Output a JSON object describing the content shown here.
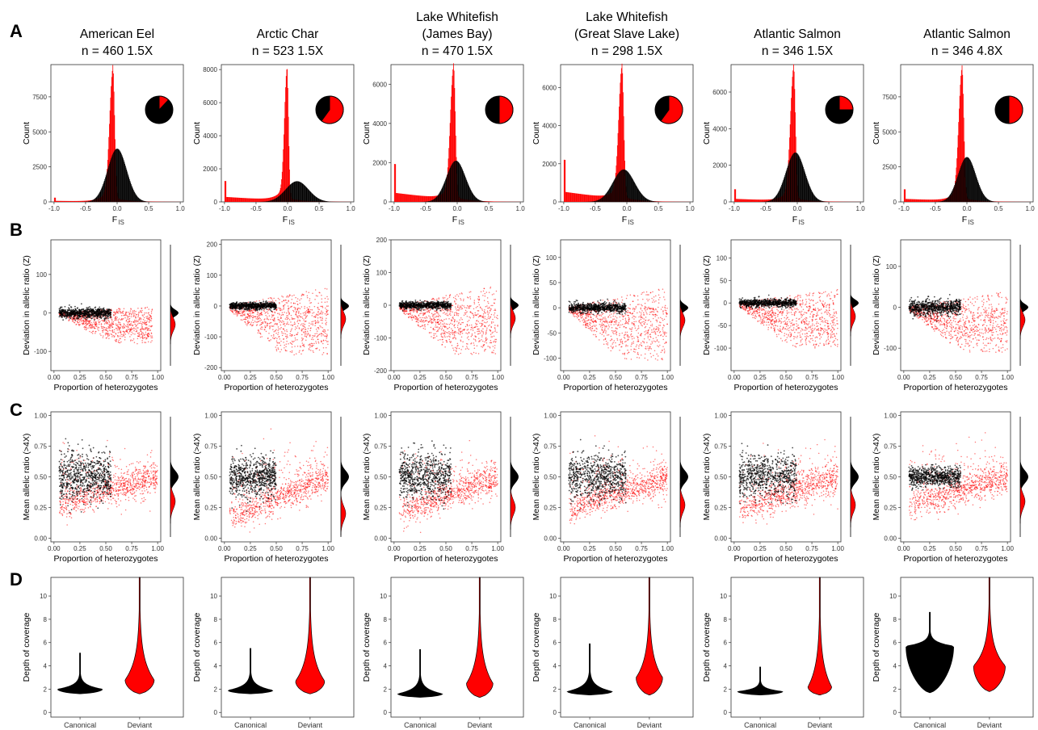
{
  "figure": {
    "row_letters": [
      "A",
      "B",
      "C",
      "D"
    ],
    "colors": {
      "deviant": "#ff0000",
      "canonical": "#000000",
      "frame": "#333333"
    },
    "columns": [
      {
        "title": [
          "American Eel",
          "n = 460    1.5X"
        ]
      },
      {
        "title": [
          "Arctic Char",
          "n = 523    1.5X"
        ]
      },
      {
        "title": [
          "Lake Whitefish",
          "(James Bay)",
          "n = 470    1.5X"
        ]
      },
      {
        "title": [
          "Lake Whitefish",
          "(Great Slave Lake)",
          "n = 298    1.5X"
        ]
      },
      {
        "title": [
          "Atlantic Salmon",
          "n = 346    1.5X"
        ]
      },
      {
        "title": [
          "Atlantic Salmon",
          "n = 346    4.8X"
        ]
      }
    ]
  },
  "chart_data": [
    {
      "panel": "A",
      "type": "histogram",
      "xlabel": "F",
      "xlabel_sub": "IS",
      "ylabel": "Count",
      "xlim": [
        -1.05,
        1.05
      ],
      "xticks": [
        -1.0,
        -0.5,
        0.0,
        0.5,
        1.0
      ],
      "xtick_labels": [
        "-1.0",
        "-0.5",
        "0.0",
        "0.5",
        "1.0"
      ],
      "columns": [
        {
          "ylim": [
            0,
            9800
          ],
          "yticks": [
            0,
            2500,
            5000,
            7500
          ],
          "ytick_labels": [
            "0",
            "2500",
            "5000",
            "7500"
          ],
          "deviant": {
            "mode": -0.07,
            "peak": 9500,
            "sigma": 0.05,
            "tail": 0.02,
            "right_tail": 0.03
          },
          "canonical": {
            "mode": 0.0,
            "peak": 3800,
            "sigma": 0.15
          },
          "pie_deviant_fraction": 0.12
        },
        {
          "ylim": [
            0,
            8300
          ],
          "yticks": [
            0,
            2000,
            4000,
            6000,
            8000
          ],
          "ytick_labels": [
            "0",
            "2000",
            "4000",
            "6000",
            "8000"
          ],
          "deviant": {
            "mode": -0.01,
            "peak": 8000,
            "sigma": 0.04,
            "tail": 0.1,
            "right_tail": 0.03
          },
          "canonical": {
            "mode": 0.15,
            "peak": 1250,
            "sigma": 0.18
          },
          "pie_deviant_fraction": 0.6
        },
        {
          "ylim": [
            0,
            7000
          ],
          "yticks": [
            0,
            2000,
            4000,
            6000
          ],
          "ytick_labels": [
            "0",
            "2000",
            "4000",
            "6000"
          ],
          "deviant": {
            "mode": -0.06,
            "peak": 6800,
            "sigma": 0.05,
            "tail": 0.18,
            "right_tail": 0.04
          },
          "canonical": {
            "mode": -0.02,
            "peak": 2100,
            "sigma": 0.15
          },
          "pie_deviant_fraction": 0.5
        },
        {
          "ylim": [
            0,
            7200
          ],
          "yticks": [
            0,
            2000,
            4000,
            6000
          ],
          "ytick_labels": [
            "0",
            "2000",
            "4000",
            "6000"
          ],
          "deviant": {
            "mode": -0.08,
            "peak": 7000,
            "sigma": 0.05,
            "tail": 0.2,
            "right_tail": 0.04
          },
          "canonical": {
            "mode": -0.05,
            "peak": 1700,
            "sigma": 0.17
          },
          "pie_deviant_fraction": 0.6
        },
        {
          "ylim": [
            0,
            7500
          ],
          "yticks": [
            0,
            2000,
            4000,
            6000
          ],
          "ytick_labels": [
            "0",
            "2000",
            "4000",
            "6000"
          ],
          "deviant": {
            "mode": -0.06,
            "peak": 7300,
            "sigma": 0.05,
            "tail": 0.06,
            "right_tail": 0.03
          },
          "canonical": {
            "mode": -0.03,
            "peak": 2700,
            "sigma": 0.15
          },
          "pie_deviant_fraction": 0.25
        },
        {
          "ylim": [
            0,
            9800
          ],
          "yticks": [
            0,
            2500,
            5000,
            7500
          ],
          "ytick_labels": [
            "0",
            "2500",
            "5000",
            "7500"
          ],
          "deviant": {
            "mode": -0.08,
            "peak": 9500,
            "sigma": 0.05,
            "tail": 0.06,
            "right_tail": 0.03
          },
          "canonical": {
            "mode": 0.0,
            "peak": 3200,
            "sigma": 0.14
          },
          "pie_deviant_fraction": 0.5
        }
      ]
    },
    {
      "panel": "B",
      "type": "scatter",
      "xlabel": "Proportion of heterozygotes",
      "ylabel": "Deviation in allelic ratio (Z)",
      "xlim": [
        -0.03,
        1.03
      ],
      "xticks": [
        0.0,
        0.25,
        0.5,
        0.75,
        1.0
      ],
      "xtick_labels": [
        "0.00",
        "0.25",
        "0.50",
        "0.75",
        "1.00"
      ],
      "columns": [
        {
          "ylim": [
            -150,
            190
          ],
          "yticks": [
            -100,
            0,
            100
          ],
          "ytick_labels": [
            "-100",
            "0",
            "100"
          ],
          "canonical": {
            "x_max": 0.55,
            "spread": 14
          },
          "deviant": {
            "x_max": 0.95,
            "min": -80,
            "upper": 18
          }
        },
        {
          "ylim": [
            -210,
            215
          ],
          "yticks": [
            -200,
            -100,
            0,
            100,
            200
          ],
          "ytick_labels": [
            "-200",
            "-100",
            "0",
            "100",
            "200"
          ],
          "canonical": {
            "x_max": 0.5,
            "spread": 12
          },
          "deviant": {
            "x_max": 1.0,
            "min": -160,
            "upper": 60
          }
        },
        {
          "ylim": [
            -200,
            200
          ],
          "yticks": [
            -200,
            -100,
            0,
            100,
            200
          ],
          "ytick_labels": [
            "-200",
            "-100",
            "0",
            "100",
            "200"
          ],
          "canonical": {
            "x_max": 0.55,
            "spread": 12
          },
          "deviant": {
            "x_max": 1.0,
            "min": -150,
            "upper": 60
          }
        },
        {
          "ylim": [
            -125,
            135
          ],
          "yticks": [
            -100,
            -50,
            0,
            50,
            100
          ],
          "ytick_labels": [
            "-100",
            "-50",
            "0",
            "50",
            "100"
          ],
          "canonical": {
            "x_max": 0.6,
            "spread": 10
          },
          "deviant": {
            "x_max": 1.0,
            "min": -105,
            "upper": 40
          }
        },
        {
          "ylim": [
            -150,
            140
          ],
          "yticks": [
            -100,
            -50,
            0,
            50,
            100
          ],
          "ytick_labels": [
            "-100",
            "-50",
            "0",
            "50",
            "100"
          ],
          "canonical": {
            "x_max": 0.6,
            "spread": 10
          },
          "deviant": {
            "x_max": 1.0,
            "min": -100,
            "upper": 30
          }
        },
        {
          "ylim": [
            -155,
            165
          ],
          "yticks": [
            -100,
            0,
            100
          ],
          "ytick_labels": [
            "-100",
            "0",
            "100"
          ],
          "canonical": {
            "x_max": 0.55,
            "spread": 20
          },
          "deviant": {
            "x_max": 1.0,
            "min": -110,
            "upper": 40
          }
        }
      ]
    },
    {
      "panel": "C",
      "type": "scatter",
      "xlabel": "Proportion of heterozygotes",
      "ylabel": "Mean allelic ratio (>4X)",
      "xlim": [
        -0.03,
        1.03
      ],
      "xticks": [
        0.0,
        0.25,
        0.5,
        0.75,
        1.0
      ],
      "xtick_labels": [
        "0.00",
        "0.25",
        "0.50",
        "0.75",
        "1.00"
      ],
      "ylim": [
        -0.03,
        1.03
      ],
      "yticks": [
        0.0,
        0.25,
        0.5,
        0.75,
        1.0
      ],
      "ytick_labels": [
        "0.00",
        "0.25",
        "0.50",
        "0.75",
        "1.00"
      ],
      "columns": [
        {
          "canonical": {
            "x_max": 0.55,
            "spread": 0.1
          },
          "deviant": {
            "x_max": 1.0,
            "low": 0.25
          }
        },
        {
          "canonical": {
            "x_max": 0.5,
            "spread": 0.08
          },
          "deviant": {
            "x_max": 1.0,
            "low": 0.15
          }
        },
        {
          "canonical": {
            "x_max": 0.55,
            "spread": 0.09
          },
          "deviant": {
            "x_max": 1.0,
            "low": 0.2
          }
        },
        {
          "canonical": {
            "x_max": 0.6,
            "spread": 0.09
          },
          "deviant": {
            "x_max": 1.0,
            "low": 0.22
          }
        },
        {
          "canonical": {
            "x_max": 0.6,
            "spread": 0.09
          },
          "deviant": {
            "x_max": 1.0,
            "low": 0.22
          }
        },
        {
          "canonical": {
            "x_max": 0.55,
            "spread": 0.04
          },
          "deviant": {
            "x_max": 1.0,
            "low": 0.25
          }
        }
      ]
    },
    {
      "panel": "D",
      "type": "violin",
      "categories": [
        "Canonical",
        "Deviant"
      ],
      "ylabel": "Depth of coverage",
      "ylim": [
        -0.4,
        11.6
      ],
      "yticks": [
        0,
        2,
        4,
        6,
        8,
        10
      ],
      "ytick_labels": [
        "0",
        "2",
        "4",
        "6",
        "8",
        "10"
      ],
      "columns": [
        {
          "canonical": {
            "min": 1.6,
            "mode": 2.0,
            "max": 5.1,
            "width": 0.85
          },
          "deviant": {
            "min": 1.6,
            "mode": 2.8,
            "max": 11.6,
            "width": 0.55
          }
        },
        {
          "canonical": {
            "min": 1.6,
            "mode": 1.9,
            "max": 5.5,
            "width": 0.85
          },
          "deviant": {
            "min": 1.6,
            "mode": 2.7,
            "max": 11.6,
            "width": 0.55
          }
        },
        {
          "canonical": {
            "min": 1.3,
            "mode": 1.6,
            "max": 5.4,
            "width": 0.85
          },
          "deviant": {
            "min": 1.3,
            "mode": 2.5,
            "max": 11.6,
            "width": 0.5
          }
        },
        {
          "canonical": {
            "min": 1.5,
            "mode": 1.8,
            "max": 5.9,
            "width": 0.85
          },
          "deviant": {
            "min": 1.5,
            "mode": 3.0,
            "max": 11.6,
            "width": 0.5
          }
        },
        {
          "canonical": {
            "min": 1.5,
            "mode": 1.8,
            "max": 3.9,
            "width": 0.85
          },
          "deviant": {
            "min": 1.5,
            "mode": 2.2,
            "max": 11.6,
            "width": 0.45
          }
        },
        {
          "canonical": {
            "min": 1.7,
            "mode": 5.7,
            "max": 8.6,
            "width": 0.9
          },
          "deviant": {
            "min": 1.8,
            "mode": 4.0,
            "max": 11.6,
            "width": 0.6
          }
        }
      ]
    }
  ]
}
